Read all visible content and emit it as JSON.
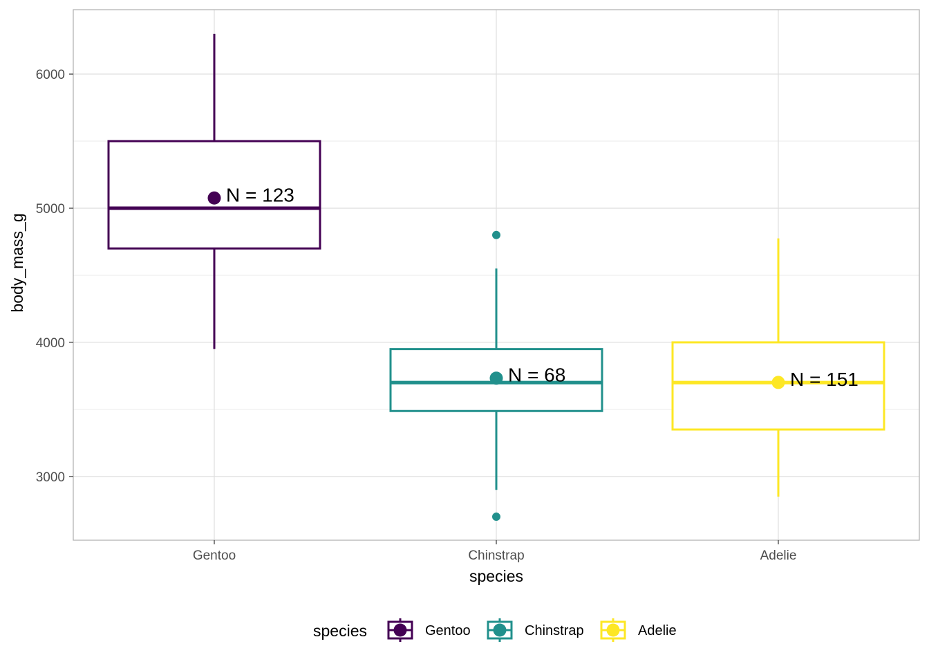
{
  "chart_data": {
    "type": "boxplot",
    "title": "",
    "xlabel": "species",
    "ylabel": "body_mass_g",
    "ylim": [
      2525,
      6480
    ],
    "y_ticks": [
      3000,
      4000,
      5000,
      6000
    ],
    "grid": true,
    "legend_placement": "bottom",
    "legend_title": "species",
    "categories": [
      "Gentoo",
      "Chinstrap",
      "Adelie"
    ],
    "series": [
      {
        "name": "Gentoo",
        "color": "#440154",
        "whisker_low": 3950,
        "q1": 4700,
        "median": 5000,
        "q3": 5500,
        "whisker_high": 6300,
        "mean": 5076,
        "outliers": [],
        "n_label": "N = 123"
      },
      {
        "name": "Chinstrap",
        "color": "#21908C",
        "whisker_low": 2900,
        "q1": 3488,
        "median": 3700,
        "q3": 3950,
        "whisker_high": 4550,
        "mean": 3733,
        "outliers": [
          2700,
          4800
        ],
        "n_label": "N = 68"
      },
      {
        "name": "Adelie",
        "color": "#FDE725",
        "whisker_low": 2850,
        "q1": 3350,
        "median": 3700,
        "q3": 4000,
        "whisker_high": 4775,
        "mean": 3701,
        "outliers": [],
        "n_label": "N = 151"
      }
    ]
  }
}
